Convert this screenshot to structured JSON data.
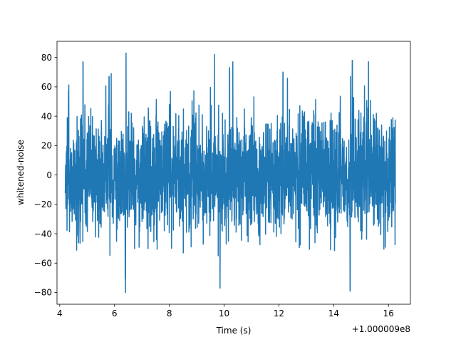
{
  "chart_data": {
    "type": "line",
    "xlabel": "Time (s)",
    "ylabel": "whitened-noise",
    "offset_label": "+1.000009e8",
    "xlim": [
      3.9,
      16.8
    ],
    "ylim": [
      -88,
      91
    ],
    "x_ticks": [
      4,
      6,
      8,
      10,
      12,
      14,
      16
    ],
    "x_tick_labels": [
      "4",
      "6",
      "8",
      "10",
      "12",
      "14",
      "16"
    ],
    "y_ticks": [
      -80,
      -60,
      -40,
      -20,
      0,
      20,
      40,
      60,
      80
    ],
    "y_tick_labels": [
      "−80",
      "−60",
      "−40",
      "−20",
      "0",
      "20",
      "40",
      "60",
      "80"
    ],
    "grid": false,
    "series": [
      {
        "color": "#1f77b4",
        "x_range": [
          4.2,
          16.25
        ],
        "envelope_typical": [
          -45,
          45
        ],
        "envelope_extreme": [
          -80,
          83
        ],
        "peaks": [
          {
            "x": 4.85,
            "y": 77
          },
          {
            "x": 6.42,
            "y": 83
          },
          {
            "x": 9.65,
            "y": 82
          },
          {
            "x": 10.2,
            "y": 73
          },
          {
            "x": 14.68,
            "y": 78
          },
          {
            "x": 6.4,
            "y": -80
          },
          {
            "x": 9.85,
            "y": -77
          },
          {
            "x": 14.6,
            "y": -79
          },
          {
            "x": 5.8,
            "y": 67
          },
          {
            "x": 12.15,
            "y": 70
          }
        ]
      }
    ]
  }
}
